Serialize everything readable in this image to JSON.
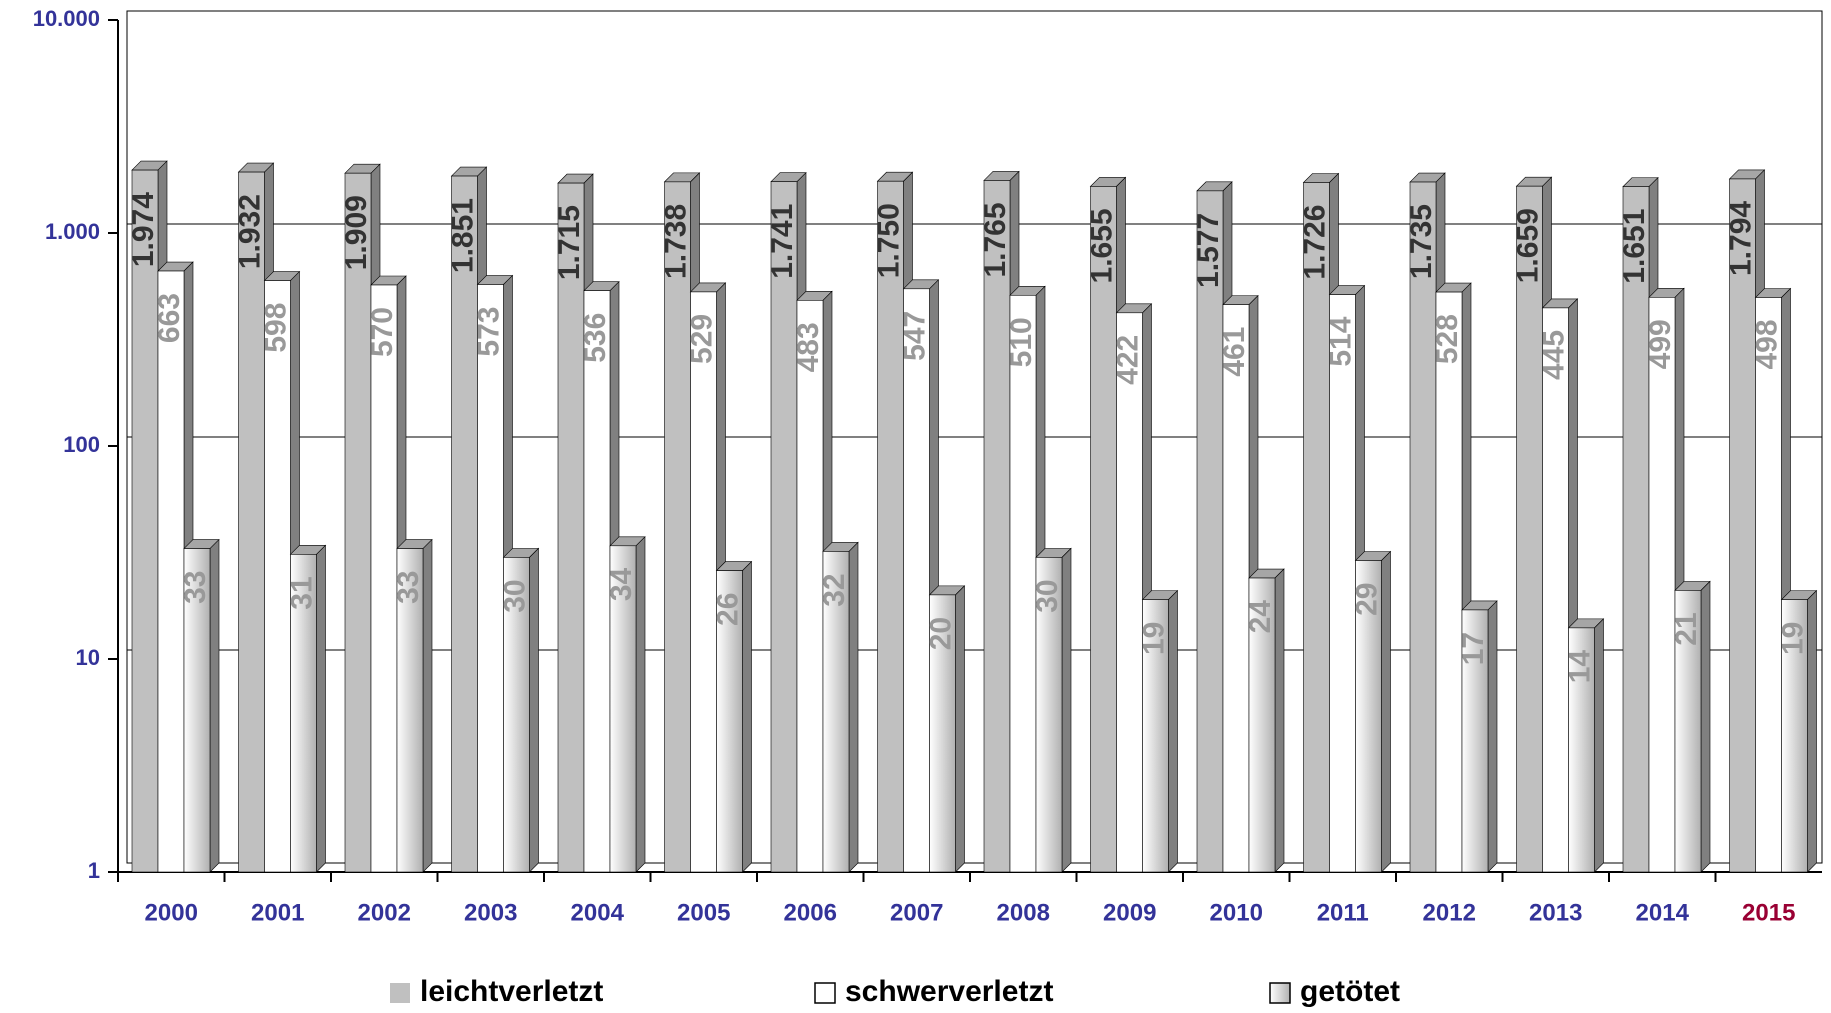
{
  "chart_data": {
    "type": "bar3d",
    "log_scale": true,
    "categories": [
      "2000",
      "2001",
      "2002",
      "2003",
      "2004",
      "2005",
      "2006",
      "2007",
      "2008",
      "2009",
      "2010",
      "2011",
      "2012",
      "2013",
      "2014",
      "2015"
    ],
    "category_label_colors": [
      "#333399",
      "#333399",
      "#333399",
      "#333399",
      "#333399",
      "#333399",
      "#333399",
      "#333399",
      "#333399",
      "#333399",
      "#333399",
      "#333399",
      "#333399",
      "#333399",
      "#333399",
      "#990033"
    ],
    "series": [
      {
        "name": "leichtverletzt",
        "color": "#c0c0c0",
        "label_color": "#333333",
        "values": [
          1974,
          1932,
          1909,
          1851,
          1715,
          1738,
          1741,
          1750,
          1765,
          1655,
          1577,
          1726,
          1735,
          1659,
          1651,
          1794
        ],
        "value_labels": [
          "1.974",
          "1.932",
          "1.909",
          "1.851",
          "1.715",
          "1.738",
          "1.741",
          "1.750",
          "1.765",
          "1.655",
          "1.577",
          "1.726",
          "1.735",
          "1.659",
          "1.651",
          "1.794"
        ]
      },
      {
        "name": "schwerverletzt",
        "color": "#ffffff",
        "label_color": "#999999",
        "values": [
          663,
          598,
          570,
          573,
          536,
          529,
          483,
          547,
          510,
          422,
          461,
          514,
          528,
          445,
          499,
          498
        ]
      },
      {
        "name": "getötet",
        "color": "#d9d9d9",
        "label_color": "#999999",
        "values": [
          33,
          31,
          33,
          30,
          34,
          26,
          32,
          20,
          30,
          19,
          24,
          29,
          17,
          14,
          21,
          19
        ]
      }
    ],
    "ylim": [
      1,
      10000
    ],
    "yticks": [
      1,
      10,
      100,
      {
        "value": 1000,
        "label": "1.000"
      },
      {
        "value": 10000,
        "label": "10.000"
      }
    ],
    "grid": true,
    "legend": "bottom"
  }
}
